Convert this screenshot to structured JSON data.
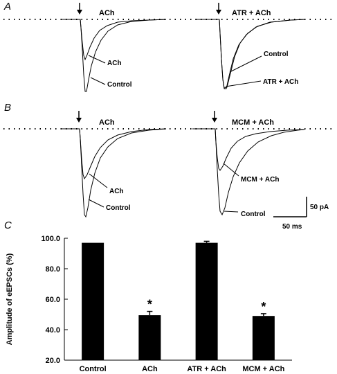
{
  "panels": {
    "A": {
      "letter": "A",
      "left_title": "ACh",
      "right_title": "ATR + ACh",
      "left_callouts": [
        "ACh",
        "Control"
      ],
      "right_callouts": [
        "Control",
        "ATR + ACh"
      ]
    },
    "B": {
      "letter": "B",
      "left_title": "ACh",
      "right_title": "MCM + ACh",
      "left_callouts": [
        "ACh",
        "Control"
      ],
      "right_callouts": [
        "MCM + ACh",
        "Control"
      ]
    },
    "C": {
      "letter": "C"
    }
  },
  "scale_bar": {
    "vertical": "50 pA",
    "horizontal": "50 ms"
  },
  "chart_data": {
    "type": "bar",
    "categories": [
      "Control",
      "ACh",
      "ATR + ACh",
      "MCM + ACh"
    ],
    "values": [
      97.0,
      49.5,
      97.0,
      49.0
    ],
    "errors": [
      0.0,
      2.5,
      1.0,
      1.5
    ],
    "significance": [
      "",
      "*",
      "",
      "*"
    ],
    "ylabel": "Amplitude of eEPSCs (%)",
    "xlabel": "",
    "ylim": [
      20.0,
      100.0
    ],
    "yticks": [
      "20.0",
      "40.0",
      "60.0",
      "80.0",
      "100.0"
    ],
    "bar_color": "#000000"
  }
}
